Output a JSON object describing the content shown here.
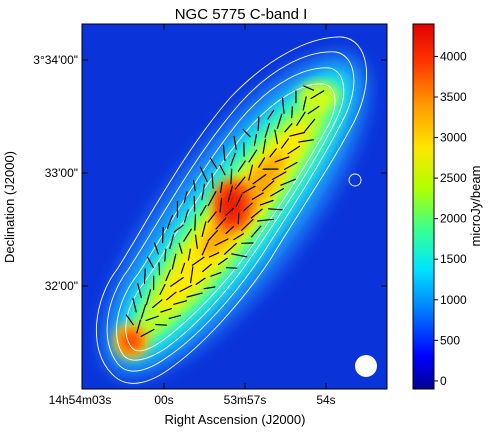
{
  "chart_data": {
    "type": "heatmap",
    "title": "NGC 5775   C-band   I",
    "xlabel": "Right Ascension (J2000)",
    "ylabel": "Declination (J2000)",
    "x_ticks": [
      "14h54m03s",
      "00s",
      "53m57s",
      "54s"
    ],
    "y_ticks": [
      "3°34'00\"",
      "33'00\"",
      "32'00\""
    ],
    "colorbar": {
      "label": "microJy/beam",
      "range": [
        -100,
        4400
      ],
      "ticks": [
        "0",
        "500",
        "1000",
        "1500",
        "2000",
        "2500",
        "3000",
        "3500",
        "4000"
      ],
      "tick_values": [
        0,
        500,
        1000,
        1500,
        2000,
        2500,
        3000,
        3500,
        4000
      ],
      "colormap": "jet"
    },
    "overlays": [
      "white contours",
      "black polarization vectors",
      "white beam ellipse"
    ],
    "peak_intensity": 4400
  }
}
